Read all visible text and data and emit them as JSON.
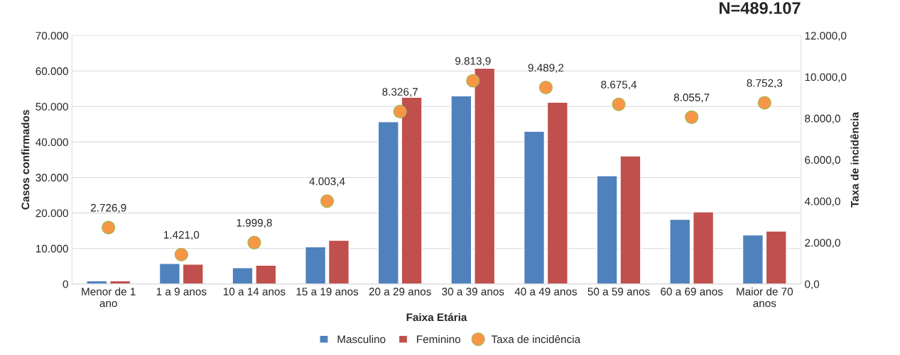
{
  "chart_data": {
    "type": "bar",
    "title": "N=489.107",
    "xlabel": "Faixa Etária",
    "ylabel": "Casos confirmados",
    "y2label": "Taxa de incidência",
    "categories": [
      "Menor de 1\nano",
      "1 a 9 anos",
      "10 a 14 anos",
      "15 a 19 anos",
      "20 a 29 anos",
      "30 a 39 anos",
      "40 a 49 anos",
      "50 a 59 anos",
      "60 a 69 anos",
      "Maior de 70\nanos"
    ],
    "series": [
      {
        "name": "Masculino",
        "color": "#4f81bd",
        "values": [
          900,
          5800,
          4600,
          10500,
          45700,
          53000,
          43000,
          30500,
          18200,
          13800
        ]
      },
      {
        "name": "Feminino",
        "color": "#c0504d",
        "values": [
          900,
          5600,
          5300,
          12300,
          52600,
          60800,
          51200,
          36100,
          20300,
          14900
        ]
      },
      {
        "name": "Taxa de incidência",
        "type": "scatter",
        "axis": "y2",
        "color": "#f79646",
        "marker": "circle",
        "values": [
          2726.9,
          1421.0,
          1999.8,
          4003.4,
          8326.7,
          9813.9,
          9489.2,
          8675.4,
          8055.7,
          8752.3
        ],
        "value_labels": [
          "2.726,9",
          "1.421,0",
          "1.999,8",
          "4.003,4",
          "8.326,7",
          "9.813,9",
          "9.489,2",
          "8.675,4",
          "8.055,7",
          "8.752,3"
        ]
      }
    ],
    "ylim": [
      0,
      70000
    ],
    "yticks": [
      {
        "value": 0,
        "label": "0"
      },
      {
        "value": 10000,
        "label": "10.000"
      },
      {
        "value": 20000,
        "label": "20.000"
      },
      {
        "value": 30000,
        "label": "30.000"
      },
      {
        "value": 40000,
        "label": "40.000"
      },
      {
        "value": 50000,
        "label": "50.000"
      },
      {
        "value": 60000,
        "label": "60.000"
      },
      {
        "value": 70000,
        "label": "70.000"
      }
    ],
    "y2lim": [
      0,
      12000
    ],
    "y2ticks": [
      {
        "value": 0,
        "label": "0,0"
      },
      {
        "value": 2000,
        "label": "2.000,0"
      },
      {
        "value": 4000,
        "label": "4.000,0"
      },
      {
        "value": 6000,
        "label": "6.000,0"
      },
      {
        "value": 8000,
        "label": "8.000,0"
      },
      {
        "value": 10000,
        "label": "10.000,0"
      },
      {
        "value": 12000,
        "label": "12.000,0"
      }
    ],
    "grid": "y",
    "legend": "bottom"
  }
}
